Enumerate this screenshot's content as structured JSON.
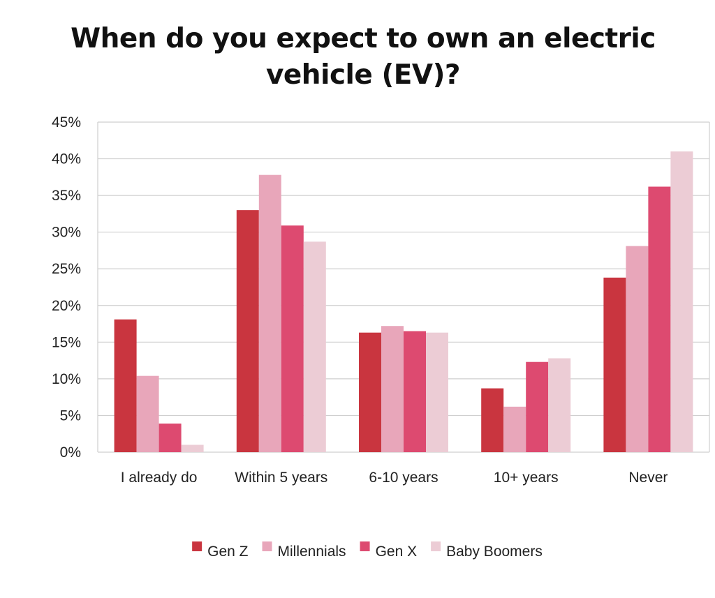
{
  "chart_data": {
    "type": "bar",
    "title_lines": [
      "When do you expect to own an electric",
      "vehicle (EV)?"
    ],
    "categories": [
      "I already do",
      "Within  5 years",
      "6-10 years",
      "10+ years",
      "Never"
    ],
    "series": [
      {
        "name": "Gen Z",
        "color": "#c9353f",
        "values": [
          18.1,
          33.0,
          16.3,
          8.7,
          23.8
        ]
      },
      {
        "name": "Millennials",
        "color": "#e8a6ba",
        "values": [
          10.4,
          37.8,
          17.2,
          6.2,
          28.1
        ]
      },
      {
        "name": "Gen X",
        "color": "#dd4a70",
        "values": [
          3.9,
          30.9,
          16.5,
          12.3,
          36.2
        ]
      },
      {
        "name": "Baby Boomers",
        "color": "#ecccd5",
        "values": [
          1.0,
          28.7,
          16.3,
          12.8,
          41.0
        ]
      }
    ],
    "y_ticks": [
      "0%",
      "5%",
      "10%",
      "15%",
      "20%",
      "25%",
      "30%",
      "35%",
      "40%",
      "45%"
    ],
    "ylim": [
      0,
      45
    ],
    "ystep": 5,
    "grid": true,
    "legend_position": "bottom"
  }
}
